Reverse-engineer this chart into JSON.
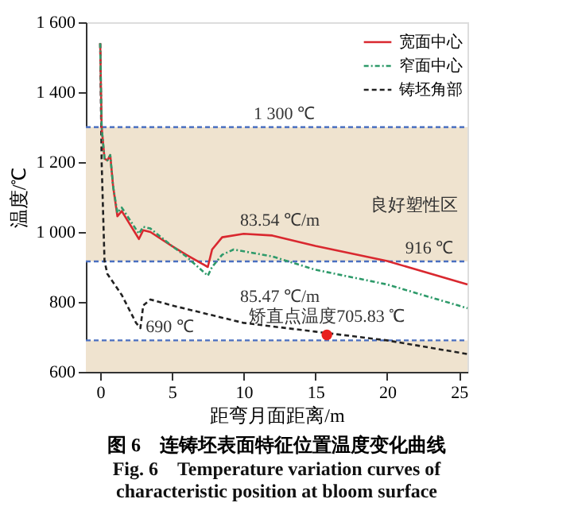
{
  "chart_data": {
    "type": "line",
    "title": "图 6　连铸坯表面特征位置温度变化曲线",
    "subtitle": "Fig. 6　Temperature variation curves of characteristic position at bloom surface",
    "xlabel": "距弯月面距离/m",
    "ylabel": "温度/℃",
    "xlim": [
      -1,
      25.6
    ],
    "xticks": [
      0,
      5,
      10,
      15,
      20,
      25
    ],
    "ylim": [
      600,
      1600
    ],
    "yticks": [
      {
        "value": 600,
        "label": "600"
      },
      {
        "value": 800,
        "label": "800"
      },
      {
        "value": 1000,
        "label": "1 000"
      },
      {
        "value": 1200,
        "label": "1 200"
      },
      {
        "value": 1400,
        "label": "1 400"
      },
      {
        "value": 1600,
        "label": "1 600"
      }
    ],
    "legend": "top right",
    "grid": false,
    "series": [
      {
        "name": "宽面中心",
        "color": "#d9282f",
        "line_style": "solid",
        "x": [
          0,
          0.1,
          0.3,
          0.5,
          0.7,
          0.9,
          1.2,
          1.5,
          2.7,
          3,
          3.5,
          5,
          6,
          7.5,
          7.8,
          8.5,
          10,
          12,
          15,
          20,
          25.6
        ],
        "values": [
          1540,
          1300,
          1210,
          1205,
          1220,
          1130,
          1045,
          1060,
          980,
          1005,
          1000,
          960,
          935,
          900,
          950,
          985,
          995,
          990,
          960,
          917,
          850
        ]
      },
      {
        "name": "窄面中心",
        "color": "#2e9a6a",
        "line_style": "dashdot",
        "x": [
          0,
          0.1,
          0.3,
          0.5,
          0.7,
          0.9,
          1.2,
          1.5,
          2.7,
          3,
          3.5,
          5,
          6,
          7.5,
          7.8,
          8.5,
          9.3,
          12,
          15,
          20,
          25.6
        ],
        "values": [
          1540,
          1300,
          1210,
          1205,
          1220,
          1130,
          1055,
          1070,
          995,
          1015,
          1010,
          960,
          930,
          875,
          900,
          935,
          950,
          930,
          892,
          850,
          782
        ]
      },
      {
        "name": "铸坯角部",
        "color": "#222222",
        "line_style": "dashed",
        "x": [
          0,
          0.1,
          0.3,
          0.5,
          1.5,
          2.5,
          2.8,
          3,
          3.5,
          5,
          10,
          15,
          20,
          25.6
        ],
        "values": [
          1540,
          1200,
          917,
          880,
          820,
          740,
          725,
          790,
          807,
          790,
          740,
          715,
          690,
          651
        ]
      },
      {
        "type": "scatter",
        "color": "#e8201e",
        "marker": "circle",
        "x": [
          15.8
        ],
        "values": [
          705.83
        ]
      }
    ],
    "ref_lines": [
      {
        "axis": "y",
        "value": 1300,
        "label": "1 300 ℃",
        "color": "#4a6fc0",
        "line_style": "dashed"
      },
      {
        "axis": "y",
        "value": 916,
        "label": "916 ℃",
        "color": "#4a6fc0",
        "line_style": "dashed"
      },
      {
        "axis": "y",
        "value": 690,
        "label": "690 ℃",
        "color": "#4a6fc0",
        "line_style": "dashed"
      }
    ],
    "bands": [
      {
        "axis": "y",
        "from": 916,
        "to": 1300,
        "label": "良好塑性区",
        "color": "#efe3cf"
      },
      {
        "axis": "y",
        "from": 600,
        "to": 690,
        "color": "#efe3cf"
      }
    ],
    "annotations": [
      "83.54 ℃/m",
      "85.47 ℃/m",
      {
        "text": "矫直点温度705.83 ℃",
        "x": 15.8,
        "y": 705.83
      }
    ]
  }
}
